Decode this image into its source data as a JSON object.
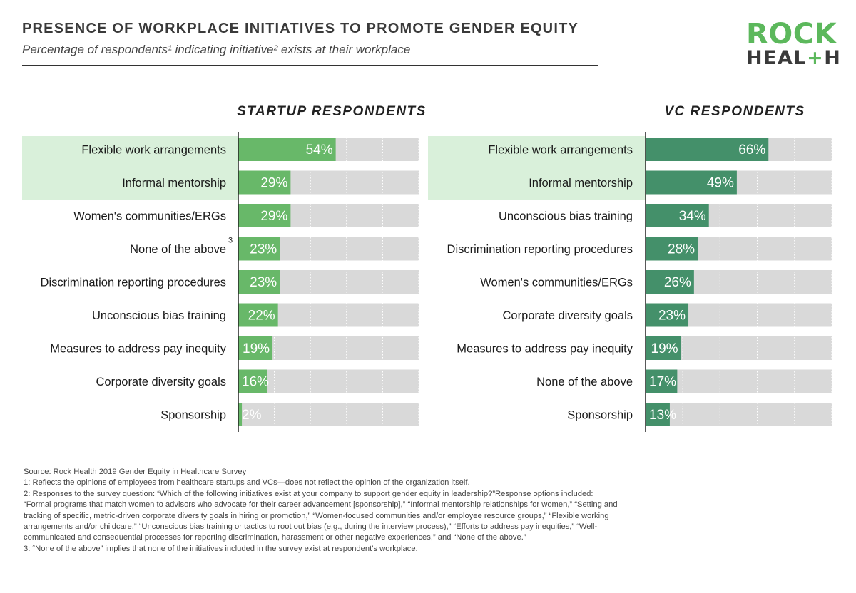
{
  "title": "PRESENCE OF WORKPLACE INITIATIVES TO PROMOTE GENDER EQUITY",
  "subtitle": "Percentage of respondents¹ indicating initiative² exists at their workplace",
  "logo": {
    "line1": "ROCK",
    "line2_a": "HEAL",
    "line2_plus": "+",
    "line2_b": "H"
  },
  "colors": {
    "startup_bar": "#68b869",
    "vc_bar": "#44906a",
    "track": "#d9d9d9",
    "highlight": "#d9f0da"
  },
  "chart_data": [
    {
      "type": "bar",
      "orientation": "horizontal",
      "title": "STARTUP RESPONDENTS",
      "xlim": [
        0,
        100
      ],
      "grid": true,
      "highlighted_categories": [
        "Flexible work arrangements",
        "Informal mentorship"
      ],
      "categories": [
        "Flexible work arrangements",
        "Informal mentorship",
        "Women's communities/ERGs",
        "None of the above",
        "Discrimination reporting procedures",
        "Unconscious bias training",
        "Measures to address pay inequity",
        "Corporate diversity goals",
        "Sponsorship"
      ],
      "category_superscripts": [
        "",
        "",
        "",
        "3",
        "",
        "",
        "",
        "",
        ""
      ],
      "values": [
        54,
        29,
        29,
        23,
        23,
        22,
        19,
        16,
        2
      ],
      "value_labels": [
        "54%",
        "29%",
        "29%",
        "23%",
        "23%",
        "22%",
        "19%",
        "16%",
        "2%"
      ]
    },
    {
      "type": "bar",
      "orientation": "horizontal",
      "title": "VC RESPONDENTS",
      "xlim": [
        0,
        100
      ],
      "grid": true,
      "highlighted_categories": [
        "Flexible work arrangements",
        "Informal mentorship"
      ],
      "categories": [
        "Flexible work arrangements",
        "Informal mentorship",
        "Unconscious bias training",
        "Discrimination reporting procedures",
        "Women's communities/ERGs",
        "Corporate diversity goals",
        "Measures to address pay inequity",
        "None of the above",
        "Sponsorship"
      ],
      "category_superscripts": [
        "",
        "",
        "",
        "",
        "",
        "",
        "",
        "",
        ""
      ],
      "values": [
        66,
        49,
        34,
        28,
        26,
        23,
        19,
        17,
        13
      ],
      "value_labels": [
        "66%",
        "49%",
        "34%",
        "28%",
        "26%",
        "23%",
        "19%",
        "17%",
        "13%"
      ]
    }
  ],
  "footnotes": [
    "Source: Rock Health 2019 Gender Equity in Healthcare Survey",
    "1: Reflects the opinions of employees from healthcare startups and VCs—does not reflect the opinion of the organization itself.",
    "2: Responses to the survey question: “Which of the following initiatives exist at your company to support gender equity in leadership?”Response options included: “Formal programs that match women to advisors who advocate for their career advancement [sponsorship],” “Informal mentorship relationships for women,” “Setting and tracking of specific, metric-driven corporate diversity goals in hiring or promotion,” “Women-focused communities and/or employee resource groups,” “Flexible working arrangements and/or childcare,” “Unconscious bias training or tactics to root out bias (e.g., during the interview process),” “Efforts to address pay inequities,” “Well-communicated and consequential processes for reporting discrimination, harassment or other negative experiences,” and “None of the above.”",
    "3: ˆNone of the above” implies that none of the initiatives included in the survey exist at respondent’s workplace."
  ]
}
